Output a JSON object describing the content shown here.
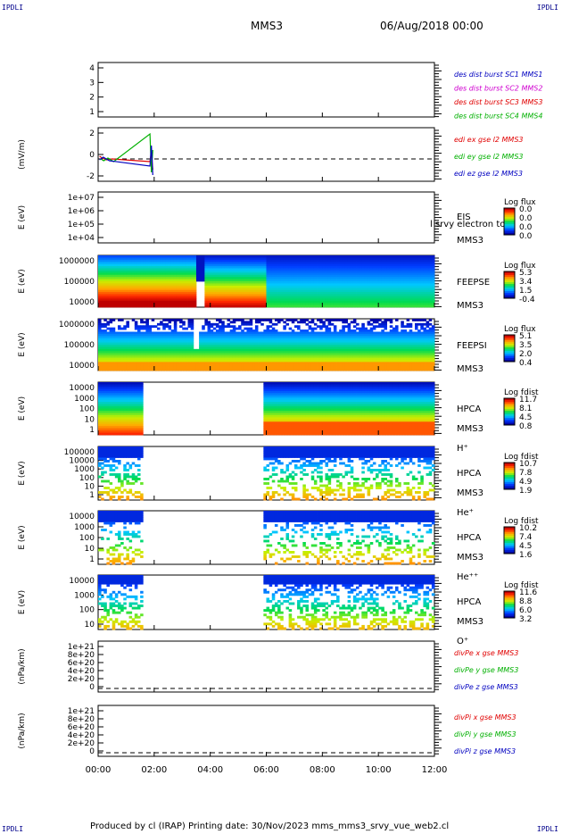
{
  "corners": {
    "tl": "IPDLI",
    "tr": "IPDLI",
    "bl": "IPDLI",
    "br": "IPDLI"
  },
  "header": {
    "spacecraft": "MMS3",
    "date": "06/Aug/2018 00:00"
  },
  "footer": {
    "text": "Produced by cl (IRAP)   Printing date: 30/Nov/2023   mms_mms3_srvy_vue_web2.cl"
  },
  "colors": {
    "red": "#e00000",
    "green": "#00b000",
    "blue": "#0000c0",
    "magenta": "#d000d0"
  },
  "chart_data": [
    {
      "id": "p1",
      "type": "line",
      "y_ticks": [
        "4",
        "3",
        "2",
        "1"
      ],
      "ylim": [
        0.7,
        4.5
      ],
      "legend": [
        {
          "text": "des dist burst SC1 MMS1",
          "color": "#0000c0"
        },
        {
          "text": "des dist burst SC2 MMS2",
          "color": "#d000d0"
        },
        {
          "text": "des dist burst SC3 MMS3",
          "color": "#e00000"
        },
        {
          "text": "des dist burst SC4 MMS4",
          "color": "#00b000"
        }
      ]
    },
    {
      "id": "p2",
      "type": "line",
      "ylabel": "(mV/m)",
      "y_ticks": [
        "2",
        "0",
        "-2"
      ],
      "ylim": [
        -2.5,
        3.5
      ],
      "legend": [
        {
          "text": "edi ex gse l2 MMS3",
          "color": "#e00000"
        },
        {
          "text": "edi ey gse l2 MMS3",
          "color": "#00b000"
        },
        {
          "text": "edi ez gse l2 MMS3",
          "color": "#0000c0"
        }
      ],
      "series": [
        {
          "name": "edi ex gse l2 MMS3",
          "color": "#e00000",
          "points": [
            [
              0.05,
              0.3
            ],
            [
              0.15,
              0.1
            ],
            [
              0.3,
              -0.1
            ],
            [
              0.5,
              0.0
            ],
            [
              1.85,
              -0.3
            ],
            [
              1.9,
              0.8
            ],
            [
              1.95,
              -1.2
            ]
          ]
        },
        {
          "name": "edi ey gse l2 MMS3",
          "color": "#00b000",
          "points": [
            [
              0.1,
              0.0
            ],
            [
              0.2,
              -0.2
            ],
            [
              0.35,
              0.1
            ],
            [
              0.55,
              -0.3
            ],
            [
              1.85,
              2.8
            ],
            [
              1.9,
              -1.5
            ],
            [
              1.95,
              1.0
            ]
          ]
        },
        {
          "name": "edi ez gse l2 MMS3",
          "color": "#0000c0",
          "points": [
            [
              0.05,
              -0.1
            ],
            [
              0.18,
              0.2
            ],
            [
              0.4,
              -0.2
            ],
            [
              1.85,
              -0.8
            ],
            [
              1.9,
              1.5
            ],
            [
              1.95,
              -1.8
            ]
          ]
        }
      ]
    },
    {
      "id": "p3",
      "type": "heatmap",
      "ylabel": "E (eV)",
      "y_ticks": [
        "1e+07",
        "1e+06",
        "1e+05",
        "1e+04"
      ],
      "labels": [
        "EIS",
        "MMS3"
      ],
      "overlay_label": "l srvy electron to",
      "cbar": {
        "title": "Log flux",
        "ticks": [
          "0.0",
          "0.0",
          "0.0",
          "0.0"
        ]
      }
    },
    {
      "id": "p4",
      "type": "heatmap",
      "ylabel": "E (eV)",
      "y_ticks": [
        "1000000",
        "100000",
        "10000"
      ],
      "labels": [
        "FEEPSE",
        "MMS3"
      ],
      "cbar": {
        "title": "Log flux",
        "ticks": [
          "5.3",
          "3.4",
          "1.5",
          "-0.4"
        ]
      }
    },
    {
      "id": "p5",
      "type": "heatmap",
      "ylabel": "E (eV)",
      "y_ticks": [
        "1000000",
        "100000",
        "10000"
      ],
      "labels": [
        "FEEPSI",
        "MMS3"
      ],
      "cbar": {
        "title": "Log flux",
        "ticks": [
          "5.1",
          "3.5",
          "2.0",
          "0.4"
        ]
      }
    },
    {
      "id": "p6",
      "type": "heatmap",
      "ylabel": "E (eV)",
      "y_ticks": [
        "10000",
        "1000",
        "100",
        "10",
        "1"
      ],
      "labels": [
        "HPCA",
        "MMS3",
        "H⁺"
      ],
      "cbar": {
        "title": "Log fdist",
        "ticks": [
          "11.7",
          "8.1",
          "4.5",
          "0.8"
        ]
      }
    },
    {
      "id": "p7",
      "type": "heatmap",
      "ylabel": "E (eV)",
      "y_ticks": [
        "100000",
        "10000",
        "1000",
        "100",
        "10",
        "1"
      ],
      "labels": [
        "HPCA",
        "MMS3",
        "He⁺"
      ],
      "cbar": {
        "title": "Log fdist",
        "ticks": [
          "10.7",
          "7.8",
          "4.9",
          "1.9"
        ]
      }
    },
    {
      "id": "p8",
      "type": "heatmap",
      "ylabel": "E (eV)",
      "y_ticks": [
        "10000",
        "1000",
        "100",
        "10",
        "1"
      ],
      "labels": [
        "HPCA",
        "MMS3",
        "He⁺⁺"
      ],
      "cbar": {
        "title": "Log fdist",
        "ticks": [
          "10.2",
          "7.4",
          "4.5",
          "1.6"
        ]
      }
    },
    {
      "id": "p9",
      "type": "heatmap",
      "ylabel": "E (eV)",
      "y_ticks": [
        "10000",
        "1000",
        "100",
        "10"
      ],
      "labels": [
        "HPCA",
        "MMS3",
        "O⁺"
      ],
      "cbar": {
        "title": "Log fdist",
        "ticks": [
          "11.6",
          "8.8",
          "6.0",
          "3.2"
        ]
      }
    },
    {
      "id": "p10",
      "type": "line",
      "ylabel": "(nPa/km)",
      "y_ticks": [
        "1e+21",
        "8e+20",
        "6e+20",
        "4e+20",
        "2e+20",
        "0"
      ],
      "ylim": [
        -5e+19,
        1.1e+21
      ],
      "legend": [
        {
          "text": "divPe x gse MMS3",
          "color": "#e00000"
        },
        {
          "text": "divPe y gse MMS3",
          "color": "#00b000"
        },
        {
          "text": "divPe z gse MMS3",
          "color": "#0000c0"
        }
      ]
    },
    {
      "id": "p11",
      "type": "line",
      "ylabel": "(nPa/km)",
      "y_ticks": [
        "1e+21",
        "8e+20",
        "6e+20",
        "4e+20",
        "2e+20",
        "0"
      ],
      "ylim": [
        -5e+19,
        1.1e+21
      ],
      "legend": [
        {
          "text": "divPi x gse MMS3",
          "color": "#e00000"
        },
        {
          "text": "divPi y gse MMS3",
          "color": "#00b000"
        },
        {
          "text": "divPi z gse MMS3",
          "color": "#0000c0"
        }
      ]
    }
  ],
  "x_axis": {
    "ticks": [
      "00:00",
      "02:00",
      "04:00",
      "06:00",
      "08:00",
      "10:00",
      "12:00"
    ],
    "range_hours": [
      0,
      12
    ]
  }
}
